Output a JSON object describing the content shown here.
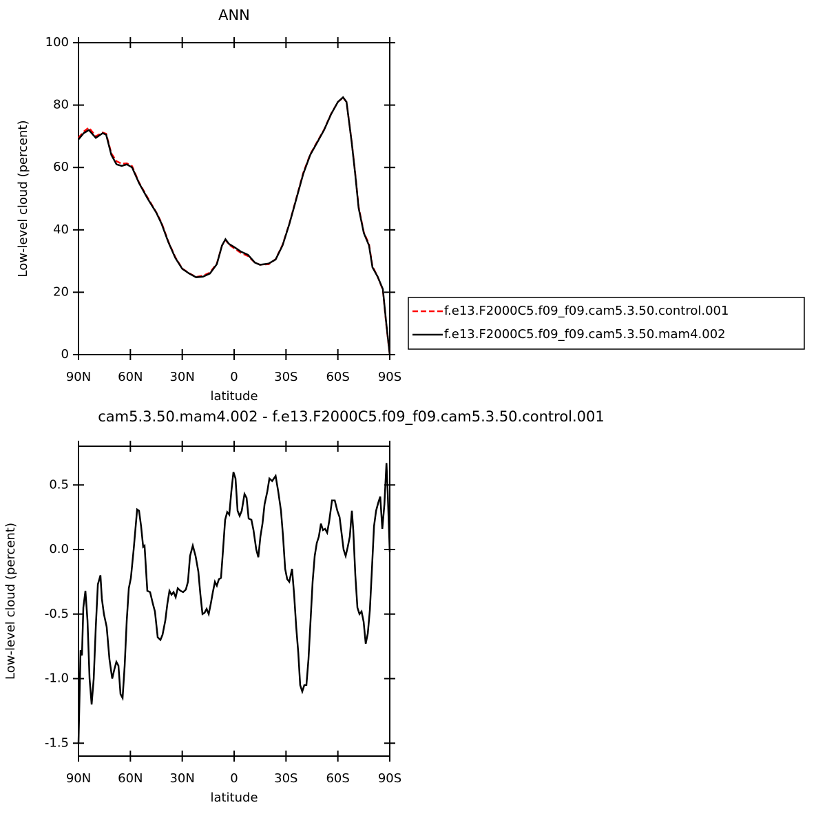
{
  "chart_data": [
    {
      "type": "line",
      "title": "ANN",
      "xlabel": "latitude",
      "ylabel": "Low-level cloud (percent)",
      "x": [
        90,
        87,
        84,
        80,
        76,
        74,
        71,
        68,
        65,
        62,
        59,
        55,
        50,
        45,
        42,
        38,
        34,
        30,
        26,
        22,
        18,
        14,
        10,
        7,
        5,
        3,
        0,
        -4,
        -8,
        -12,
        -15,
        -20,
        -24,
        -28,
        -32,
        -36,
        -40,
        -44,
        -48,
        -52,
        -56,
        -60,
        -63,
        -65,
        -68,
        -70,
        -72,
        -75,
        -78,
        -80,
        -83,
        -86,
        -88,
        -90
      ],
      "series": [
        {
          "name": "f.e13.F2000C5.f09_f09.cam5.3.50.control.001",
          "color": "#ff0000",
          "line_style": "dashed",
          "values": [
            69.5,
            71.5,
            72.8,
            70,
            71.2,
            70.8,
            64.5,
            62,
            61.2,
            61.3,
            60.4,
            55.2,
            50.3,
            45.6,
            42.3,
            36.2,
            31.2,
            27.6,
            26.1,
            24.9,
            25.3,
            26.3,
            29.2,
            35,
            36.8,
            35.3,
            34.1,
            32.6,
            31.6,
            29.5,
            28.8,
            29,
            30.6,
            35.2,
            42.1,
            50.2,
            58.3,
            64.2,
            68.2,
            72.1,
            77.1,
            81,
            82.4,
            81,
            68.2,
            58.3,
            47.4,
            39.2,
            35.4,
            28.3,
            25,
            20.8,
            9.5,
            0
          ]
        },
        {
          "name": "f.e13.F2000C5.f09_f09.cam5.3.50.mam4.002",
          "color": "#000000",
          "line_style": "solid",
          "values": [
            69,
            71,
            72,
            69.5,
            71,
            70.5,
            64,
            61,
            60.5,
            61,
            60,
            55,
            50,
            45.5,
            42,
            36,
            31,
            27.5,
            26,
            24.8,
            25,
            26,
            29,
            35,
            37,
            35.5,
            34.5,
            33,
            32,
            29.5,
            28.8,
            29.2,
            30.5,
            35,
            42,
            50,
            58,
            64,
            68,
            72,
            77,
            81,
            82.5,
            81,
            68,
            58,
            47,
            39,
            35,
            28,
            25,
            21,
            10,
            0
          ]
        }
      ],
      "xlim": [
        90,
        -90
      ],
      "xticks": [
        {
          "value": 90,
          "label": "90N"
        },
        {
          "value": 60,
          "label": "60N"
        },
        {
          "value": 30,
          "label": "30N"
        },
        0,
        {
          "value": -30,
          "label": "30S"
        },
        {
          "value": -60,
          "label": "60S"
        },
        {
          "value": -90,
          "label": "90S"
        }
      ],
      "ylim": [
        0,
        100
      ],
      "yticks": [
        0,
        20,
        40,
        60,
        80,
        100
      ],
      "legend": "right"
    },
    {
      "type": "line",
      "title": "cam5.3.50.mam4.002 - f.e13.F2000C5.f09_f09.cam5.3.50.control.001",
      "xlabel": "latitude",
      "ylabel": "Low-level cloud (percent)",
      "color": "#000000",
      "x": [
        90,
        88.8,
        88,
        87.2,
        86,
        84.8,
        83.6,
        82.4,
        81.2,
        80,
        78.8,
        77.3,
        76.5,
        75.3,
        73.7,
        72.1,
        70.5,
        69.3,
        68.1,
        66.9,
        65.7,
        64.5,
        63.3,
        62.1,
        60.9,
        59.7,
        58.1,
        56.1,
        55,
        53.8,
        52.6,
        51.8,
        50.2,
        48.6,
        47,
        45.8,
        44.2,
        42.6,
        41.4,
        39.8,
        38.6,
        37.4,
        36.2,
        35,
        33.8,
        32.6,
        31,
        29.5,
        27.9,
        26.7,
        25.5,
        23.9,
        22.3,
        20.7,
        19.5,
        18.3,
        17.1,
        15.9,
        14.7,
        13.5,
        12.3,
        11.1,
        10,
        8.8,
        7.6,
        6.4,
        5.2,
        4,
        2.8,
        1.6,
        0.4,
        -0.8,
        -2,
        -3.2,
        -4.4,
        -6,
        -7.2,
        -8.4,
        -10,
        -11.2,
        -12.8,
        -14,
        -15.2,
        -16.4,
        -17.6,
        -19.2,
        -20.4,
        -22,
        -24,
        -25.5,
        -27.1,
        -28.3,
        -29.5,
        -30.7,
        -31.9,
        -33.5,
        -34.7,
        -35.9,
        -37.1,
        -38.2,
        -39.4,
        -40.6,
        -41.8,
        -43,
        -44.2,
        -45.4,
        -46.6,
        -47.8,
        -49,
        -50.2,
        -51.4,
        -52.6,
        -53.8,
        -55,
        -56.6,
        -58.2,
        -59.7,
        -61,
        -62.2,
        -63.3,
        -64.5,
        -65.7,
        -66.9,
        -68.1,
        -68.9,
        -70.1,
        -71.3,
        -72.5,
        -73.7,
        -74.9,
        -76.1,
        -77.3,
        -78.5,
        -79.7,
        -80.9,
        -82.1,
        -83.3,
        -84.5,
        -85.7,
        -86.9,
        -88.1,
        -88.8,
        -90
      ],
      "values": [
        -1.5,
        -0.78,
        -0.82,
        -0.45,
        -0.32,
        -0.55,
        -1.0,
        -1.2,
        -1.0,
        -0.6,
        -0.27,
        -0.2,
        -0.38,
        -0.5,
        -0.6,
        -0.85,
        -1.0,
        -0.93,
        -0.87,
        -0.9,
        -1.12,
        -1.15,
        -0.9,
        -0.55,
        -0.3,
        -0.22,
        0.0,
        0.31,
        0.3,
        0.18,
        0.02,
        0.03,
        -0.32,
        -0.33,
        -0.42,
        -0.48,
        -0.68,
        -0.7,
        -0.66,
        -0.55,
        -0.42,
        -0.32,
        -0.35,
        -0.33,
        -0.37,
        -0.3,
        -0.32,
        -0.33,
        -0.31,
        -0.25,
        -0.05,
        0.03,
        -0.05,
        -0.17,
        -0.35,
        -0.5,
        -0.49,
        -0.46,
        -0.5,
        -0.42,
        -0.33,
        -0.25,
        -0.28,
        -0.23,
        -0.22,
        0.0,
        0.23,
        0.29,
        0.27,
        0.45,
        0.6,
        0.55,
        0.3,
        0.26,
        0.3,
        0.43,
        0.4,
        0.24,
        0.23,
        0.15,
        0.0,
        -0.06,
        0.1,
        0.2,
        0.35,
        0.45,
        0.55,
        0.53,
        0.57,
        0.45,
        0.3,
        0.1,
        -0.15,
        -0.23,
        -0.25,
        -0.15,
        -0.35,
        -0.6,
        -0.8,
        -1.05,
        -1.1,
        -1.05,
        -1.05,
        -0.85,
        -0.55,
        -0.25,
        -0.05,
        0.05,
        0.1,
        0.2,
        0.15,
        0.16,
        0.13,
        0.22,
        0.38,
        0.38,
        0.3,
        0.25,
        0.12,
        0.0,
        -0.05,
        0.02,
        0.1,
        0.3,
        0.15,
        -0.2,
        -0.45,
        -0.5,
        -0.48,
        -0.56,
        -0.73,
        -0.65,
        -0.47,
        -0.15,
        0.18,
        0.3,
        0.36,
        0.41,
        0.16,
        0.35,
        0.67,
        0.45,
        -0.02
      ],
      "xlim": [
        90,
        -90
      ],
      "xticks": [
        {
          "value": 90,
          "label": "90N"
        },
        {
          "value": 60,
          "label": "60N"
        },
        {
          "value": 30,
          "label": "30N"
        },
        0,
        {
          "value": -30,
          "label": "30S"
        },
        {
          "value": -60,
          "label": "60S"
        },
        {
          "value": -90,
          "label": "90S"
        }
      ],
      "ylim": [
        -1.6,
        0.8
      ],
      "yticks": [
        -1.5,
        {
          "value": -1,
          "label": "-1.0"
        },
        -0.5,
        {
          "value": 0,
          "label": "0.0"
        },
        0.5
      ]
    }
  ]
}
